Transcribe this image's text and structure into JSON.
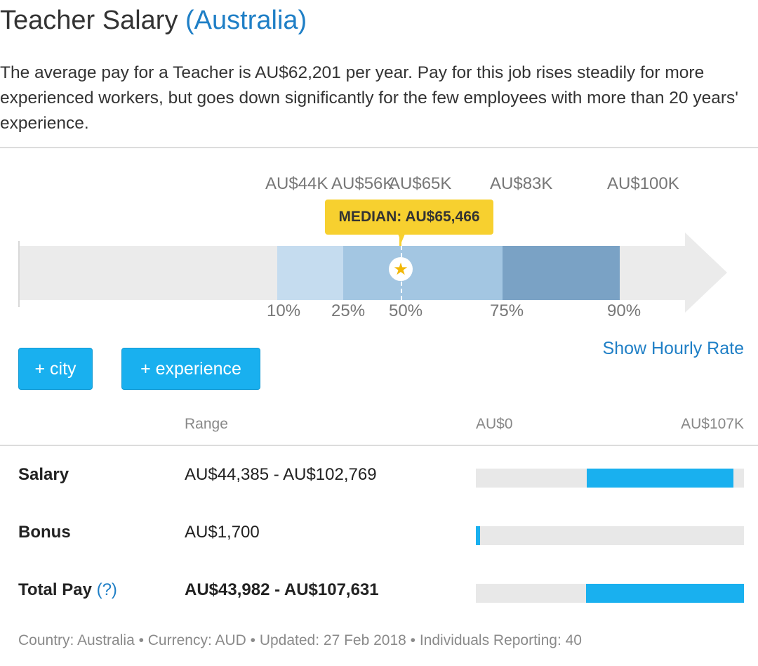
{
  "title": {
    "text": "Teacher Salary",
    "location": "(Australia)"
  },
  "intro": "The average pay for a Teacher is AU$62,201 per year. Pay for this job rises steadily for more experienced workers, but goes down significantly for the few employees with more than 20 years' experience.",
  "distribution": {
    "values": [
      {
        "label": "AU$44K",
        "percentile": "10%"
      },
      {
        "label": "AU$56K",
        "percentile": "25%"
      },
      {
        "label": "AU$65K",
        "percentile": "50%"
      },
      {
        "label": "AU$83K",
        "percentile": "75%"
      },
      {
        "label": "AU$100K",
        "percentile": "90%"
      }
    ],
    "median_label": "MEDIAN: AU$65,466",
    "colors": {
      "low_band": "#c5dcef",
      "mid_band": "#a3c6e2",
      "high_band": "#7aa2c5",
      "median": "#f7d02f",
      "track": "#ebebeb"
    }
  },
  "links": {
    "hourly": "Show Hourly Rate"
  },
  "buttons": {
    "city": "+ city",
    "experience": "+ experience"
  },
  "table": {
    "headers": {
      "range": "Range",
      "scale_min": "AU$0",
      "scale_max": "AU$107K"
    },
    "scale_max_value": 107,
    "rows": [
      {
        "label": "Salary",
        "range": "AU$44,385 - AU$102,769",
        "min": 44.385,
        "max": 102.769
      },
      {
        "label": "Bonus",
        "range": "AU$1,700",
        "min": 0,
        "max": 1.7
      },
      {
        "label": "Total Pay",
        "help": "(?)",
        "range": "AU$43,982 - AU$107,631",
        "min": 43.982,
        "max": 107.631
      }
    ]
  },
  "footer": "Country: Australia • Currency: AUD • Updated: 27 Feb 2018 • Individuals Reporting: 40",
  "colors": {
    "accent": "#1f7fc6",
    "button": "#19b0ef"
  }
}
